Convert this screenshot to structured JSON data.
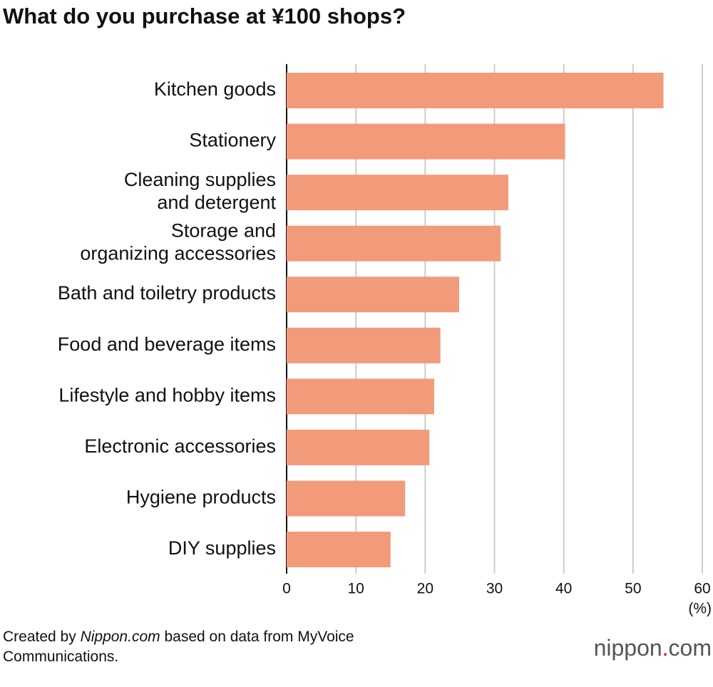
{
  "chart_data": {
    "type": "bar",
    "orientation": "horizontal",
    "title": "What do you purchase at ¥100 shops?",
    "categories": [
      "Kitchen goods",
      "Stationery",
      "Cleaning supplies\nand detergent",
      "Storage and\norganizing accessories",
      "Bath and toiletry products",
      "Food and beverage items",
      "Lifestyle and hobby items",
      "Electronic accessories",
      "Hygiene products",
      "DIY supplies"
    ],
    "values": [
      54.4,
      40.2,
      32.0,
      30.9,
      24.9,
      22.2,
      21.3,
      20.6,
      17.1,
      15.0
    ],
    "color": "#f29b7b",
    "xlim": [
      0,
      60
    ],
    "xticks": [
      0,
      10,
      20,
      30,
      40,
      50,
      60
    ],
    "x_axis_label": "(%)",
    "grid": true
  },
  "footer": {
    "source": [
      "Created by ",
      "Nippon.com",
      " based on data from MyVoice Communications."
    ],
    "logo": "nippon.com"
  }
}
